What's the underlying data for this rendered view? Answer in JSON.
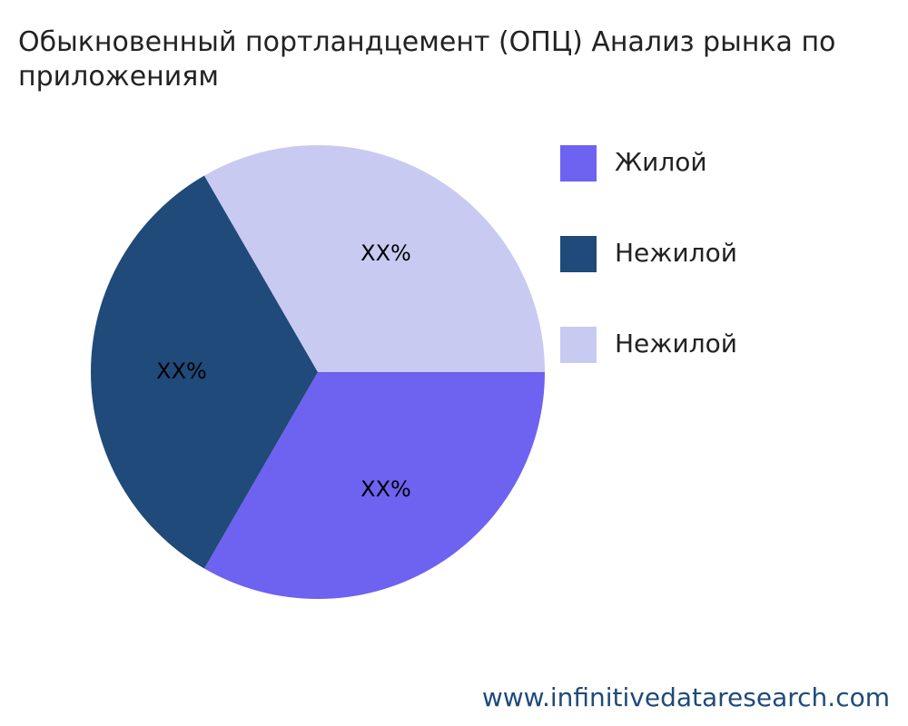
{
  "chart_data": {
    "type": "pie",
    "title": "Обыкновенный портландцемент (ОПЦ) Анализ рынка по приложениям",
    "categories": [
      "Жилой",
      "Нежилой",
      "Нежилой"
    ],
    "values": [
      33.3,
      33.3,
      33.3
    ],
    "value_labels": [
      "XX%",
      "XX%",
      "XX%"
    ],
    "colors": [
      "#6e62f1",
      "#1f4a7a",
      "#c8caf1"
    ],
    "legend": "right"
  },
  "footer": {
    "source": "www.infinitivedataresearch.com"
  }
}
